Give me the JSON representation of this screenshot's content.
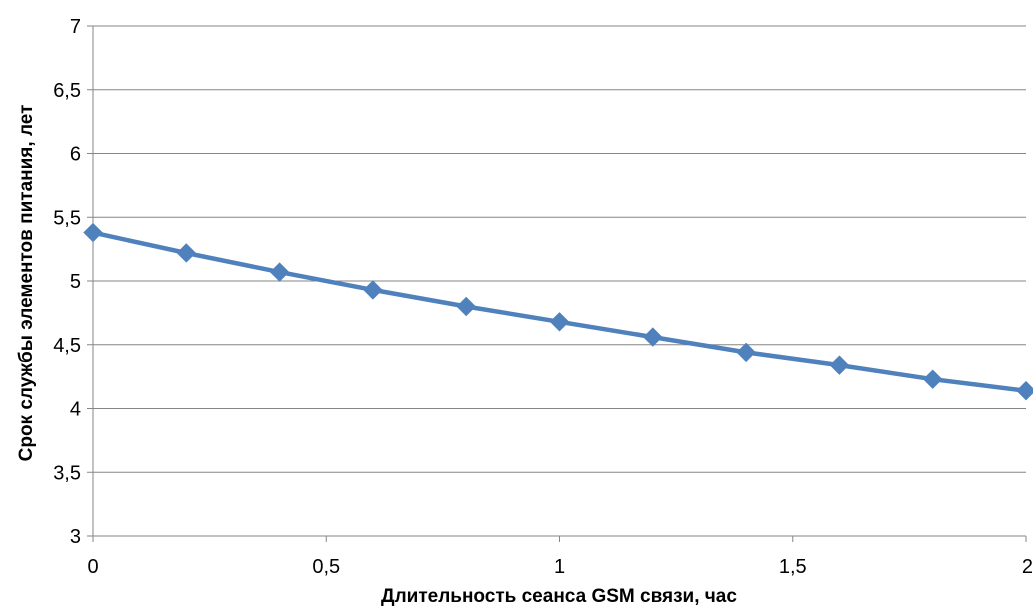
{
  "chart_data": {
    "type": "line",
    "title": "",
    "xlabel": "Длительность сеанса GSM связи, час",
    "ylabel": "Срок службы элементов питания, лет",
    "xlim": [
      0,
      2
    ],
    "ylim": [
      3,
      7
    ],
    "x_ticks": [
      0,
      0.5,
      1,
      1.5,
      2
    ],
    "x_tick_labels": [
      "0",
      "0,5",
      "1",
      "1,5",
      "2"
    ],
    "y_ticks": [
      3,
      3.5,
      4,
      4.5,
      5,
      5.5,
      6,
      6.5,
      7
    ],
    "y_tick_labels": [
      "3",
      "3,5",
      "4",
      "4,5",
      "5",
      "5,5",
      "6",
      "6,5",
      "7"
    ],
    "grid": "horizontal",
    "legend": "none",
    "series": [
      {
        "color": "#4F81BD",
        "marker": "diamond",
        "x": [
          0,
          0.2,
          0.4,
          0.6,
          0.8,
          1.0,
          1.2,
          1.4,
          1.6,
          1.8,
          2.0
        ],
        "y": [
          5.38,
          5.22,
          5.07,
          4.93,
          4.8,
          4.68,
          4.56,
          4.44,
          4.34,
          4.23,
          4.14
        ]
      }
    ],
    "colors": {
      "grid": "#868686",
      "axis": "#868686",
      "text": "#000000"
    }
  }
}
